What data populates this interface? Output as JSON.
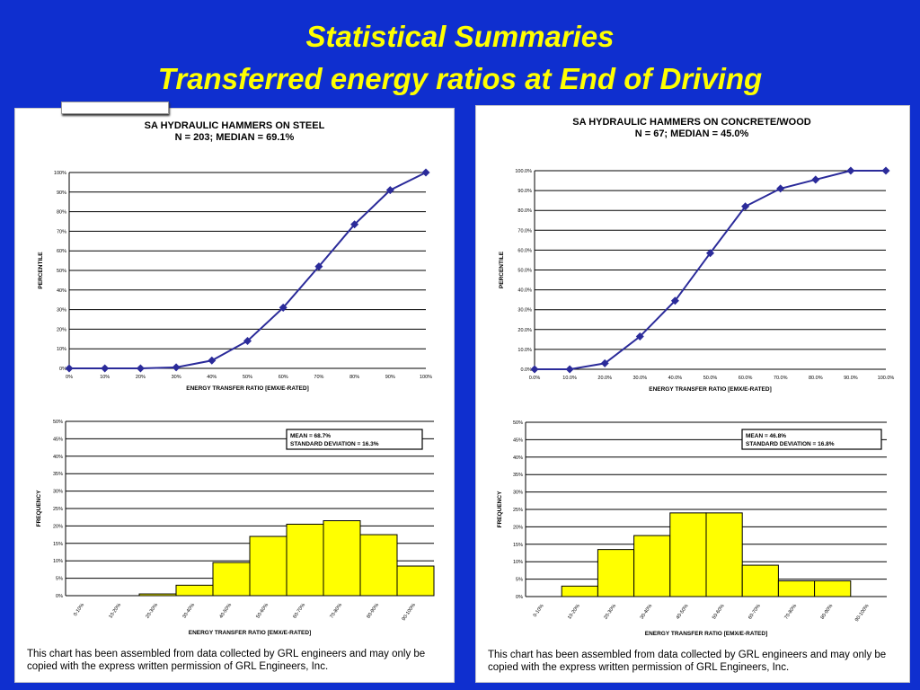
{
  "slide": {
    "title_line1": "Statistical Summaries",
    "title_line2": "Transferred energy ratios at  End of Driving"
  },
  "colors": {
    "background": "#0f2fcf",
    "title": "#ffff00",
    "line_series": "#2b2b9a",
    "bar_fill": "#ffff00"
  },
  "copyright_text": "This chart has been assembled from data collected by GRL engineers and may only be copied with the express written permission of GRL Engineers, Inc.",
  "chart_data": [
    {
      "type": "line",
      "title": "SA HYDRAULIC HAMMERS ON STEEL",
      "subtitle": "N = 203; MEDIAN = 69.1%",
      "xlabel": "ENERGY TRANSFER RATIO [EMX/E-RATED]",
      "ylabel": "PERCENTILE",
      "x_ticks": [
        "0%",
        "10%",
        "20%",
        "30%",
        "40%",
        "50%",
        "60%",
        "70%",
        "80%",
        "90%",
        "100%"
      ],
      "y_ticks": [
        "0%",
        "10%",
        "20%",
        "30%",
        "40%",
        "50%",
        "60%",
        "70%",
        "80%",
        "90%",
        "100%"
      ],
      "xlim": [
        0,
        100
      ],
      "ylim": [
        0,
        100
      ],
      "grid": "horizontal",
      "x": [
        0,
        10,
        20,
        30,
        40,
        50,
        60,
        70,
        80,
        90,
        100
      ],
      "y": [
        0,
        0,
        0,
        0.5,
        4,
        14,
        31,
        52,
        73.5,
        91,
        100
      ]
    },
    {
      "type": "bar",
      "ylabel": "FREQUENCY",
      "xlabel": "ENERGY TRANSFER RATIO [EMX/E-RATED]",
      "categories": [
        "0-10%",
        "10-20%",
        "20-30%",
        "30-40%",
        "40-50%",
        "50-60%",
        "60-70%",
        "70-80%",
        "80-90%",
        "90-100%"
      ],
      "values": [
        0,
        0,
        0.5,
        3,
        9.5,
        17,
        20.5,
        21.5,
        17.5,
        8.5
      ],
      "y_ticks": [
        "0%",
        "5%",
        "10%",
        "15%",
        "20%",
        "25%",
        "30%",
        "35%",
        "40%",
        "45%",
        "50%"
      ],
      "ylim": [
        0,
        50
      ],
      "grid": "horizontal",
      "annotation": [
        "MEAN = 68.7%",
        "STANDARD DEVIATION = 16.3%"
      ]
    },
    {
      "type": "line",
      "title": "SA HYDRAULIC HAMMERS ON CONCRETE/WOOD",
      "subtitle": "N = 67; MEDIAN = 45.0%",
      "xlabel": "ENERGY TRANSFER RATIO [EMX/E-RATED]",
      "ylabel": "PERCENTILE",
      "x_ticks": [
        "0.0%",
        "10.0%",
        "20.0%",
        "30.0%",
        "40.0%",
        "50.0%",
        "60.0%",
        "70.0%",
        "80.0%",
        "90.0%",
        "100.0%"
      ],
      "y_ticks": [
        "0.0%",
        "10.0%",
        "20.0%",
        "30.0%",
        "40.0%",
        "50.0%",
        "60.0%",
        "70.0%",
        "80.0%",
        "90.0%",
        "100.0%"
      ],
      "xlim": [
        0,
        100
      ],
      "ylim": [
        0,
        100
      ],
      "grid": "horizontal",
      "x": [
        0,
        10,
        20,
        30,
        40,
        50,
        60,
        70,
        80,
        90,
        100
      ],
      "y": [
        0,
        0,
        3,
        16.5,
        34.5,
        58.5,
        82,
        91,
        95.5,
        100,
        100
      ]
    },
    {
      "type": "bar",
      "ylabel": "FREQUENCY",
      "xlabel": "ENERGY TRANSFER RATIO [EMX/E-RATED]",
      "categories": [
        "0-10%",
        "10-20%",
        "20-30%",
        "30-40%",
        "40-50%",
        "50-60%",
        "60-70%",
        "70-80%",
        "80-90%",
        "90-100%"
      ],
      "values": [
        0,
        3,
        13.5,
        17.5,
        24,
        24,
        9,
        4.5,
        4.5,
        0
      ],
      "y_ticks": [
        "0%",
        "5%",
        "10%",
        "15%",
        "20%",
        "25%",
        "30%",
        "35%",
        "40%",
        "45%",
        "50%"
      ],
      "ylim": [
        0,
        50
      ],
      "grid": "horizontal",
      "annotation": [
        "MEAN = 46.8%",
        "STANDARD DEVIATION = 16.8%"
      ]
    }
  ]
}
